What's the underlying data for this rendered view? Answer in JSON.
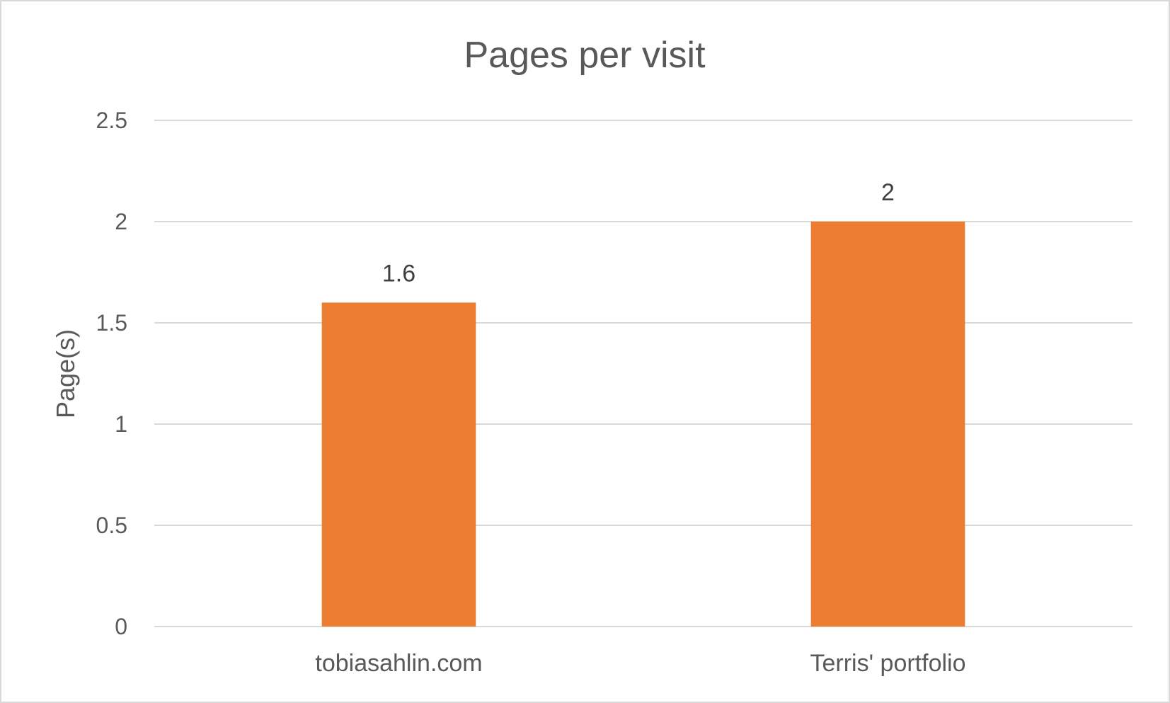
{
  "chart_data": {
    "type": "bar",
    "title": "Pages per visit",
    "xlabel": "",
    "ylabel": "Page(s)",
    "categories": [
      "tobiasahlin.com",
      "Terris' portfolio"
    ],
    "values": [
      1.6,
      2
    ],
    "data_labels": [
      "1.6",
      "2"
    ],
    "ylim": [
      0,
      2.5
    ],
    "yticks": [
      0,
      0.5,
      1,
      1.5,
      2,
      2.5
    ],
    "ytick_labels": [
      "0",
      "0.5",
      "1",
      "1.5",
      "2",
      "2.5"
    ],
    "grid": true,
    "legend": "none",
    "bar_color": "#ed7d31",
    "grid_color": "#d9d9d9",
    "text_color": "#595959"
  }
}
